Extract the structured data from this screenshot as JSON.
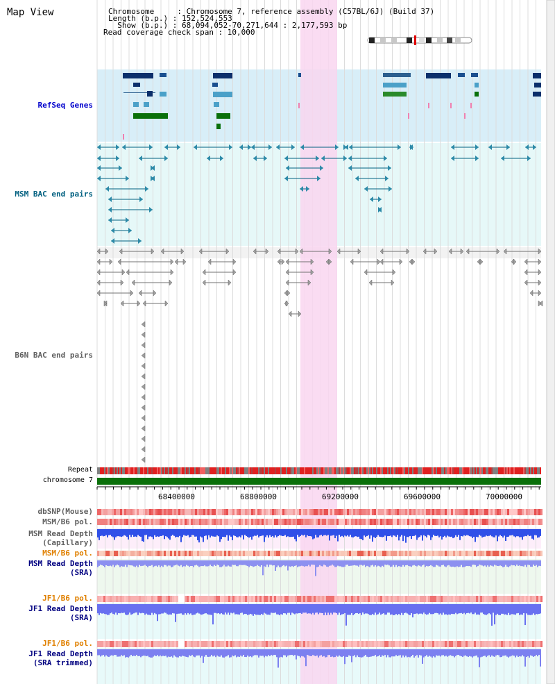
{
  "view": {
    "title": "Map View",
    "info_lines": [
      "Chromosome     : Chromosome 7, reference assembly (C57BL/6J) (Build 37)",
      "Length (b.p.) : 152,524,553",
      "  Show (b.p.) : 68,094,052-70,271,644 : 2,177,593 bp",
      "Read coverage check span : 10,000"
    ],
    "chromosome_label": "chromosome 7",
    "repeat_label": "Repeat",
    "axis_ticks": [
      "68400000",
      "68800000",
      "69200000",
      "69600000",
      "70000000"
    ]
  },
  "tracks": {
    "refseq": "RefSeq Genes",
    "msm_bac": "MSM BAC end pairs",
    "b6n_bac": "B6N BAC end pairs",
    "dbsnp": "dbSNP(Mouse)",
    "msm_b6_pol_1": "MSM/B6 pol.",
    "msm_depth_cap_1": "MSM Read Depth",
    "msm_depth_cap_2": "(Capillary)",
    "msm_b6_pol_2": "MSM/B6 pol.",
    "msm_depth_sra_1": "MSM Read Depth",
    "msm_depth_sra_2": "(SRA)",
    "jf1_b6_pol_1": "JF1/B6 pol.",
    "jf1_depth_sra_1": "JF1 Read Depth",
    "jf1_depth_sra_2": "(SRA)",
    "jf1_b6_pol_2": "JF1/B6 pol.",
    "jf1_depth_trim_1": "JF1 Read Depth",
    "jf1_depth_trim_2": "(SRA trimmed)"
  },
  "colors": {
    "refseq_label": "#0000cc",
    "msm_bac_label": "#006080",
    "b6n_bac_label": "#606060",
    "pol_orange": "#e08000",
    "depth_blue": "#000080",
    "highlight": "#f9d6f0"
  }
}
